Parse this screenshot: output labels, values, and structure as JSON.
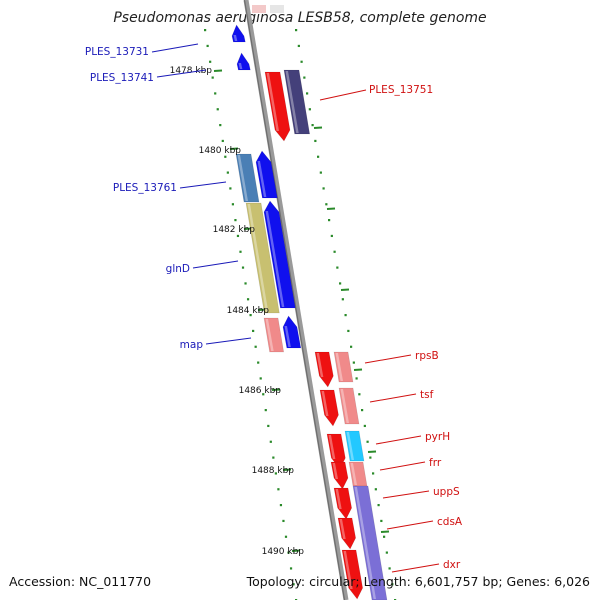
{
  "title": "Pseudomonas aeruginosa LESB58, complete genome",
  "footer": {
    "accession": "Accession: NC_011770",
    "topology": "Topology: circular; Length: 6,601,757 bp; Genes: 6,026"
  },
  "axis_labels": [
    {
      "text": "1478 kbp",
      "anchor": "end"
    },
    {
      "text": "1480 kbp",
      "anchor": "end"
    },
    {
      "text": "1482 kbp",
      "anchor": "end"
    },
    {
      "text": "1484 kbp",
      "anchor": "end"
    },
    {
      "text": "1486 kbp",
      "anchor": "end"
    },
    {
      "text": "1488 kbp",
      "anchor": "end"
    },
    {
      "text": "1490 kbp",
      "anchor": "end"
    }
  ],
  "gene_labels": [
    {
      "text": "PLES_13731",
      "color": "#1a1ab8"
    },
    {
      "text": "PLES_13741",
      "color": "#1a1ab8"
    },
    {
      "text": "PLES_13751",
      "color": "#d01010"
    },
    {
      "text": "PLES_13761",
      "color": "#1a1ab8"
    },
    {
      "text": "glnD",
      "color": "#1a1ab8"
    },
    {
      "text": "map",
      "color": "#1a1ab8"
    },
    {
      "text": "rpsB",
      "color": "#d01010"
    },
    {
      "text": "tsf",
      "color": "#d01010"
    },
    {
      "text": "pyrH",
      "color": "#d01010"
    },
    {
      "text": "frr",
      "color": "#d01010"
    },
    {
      "text": "uppS",
      "color": "#d01010"
    },
    {
      "text": "cdsA",
      "color": "#d01010"
    },
    {
      "text": "dxr",
      "color": "#d01010"
    }
  ],
  "colors": {
    "backbone": "#8a8a8a",
    "tick": "#2a8a2a",
    "forward": "#ee1111",
    "forward_light": "#f08a8a",
    "reverse": "#1010ee",
    "reverse_dark": "#44407a",
    "steel": "#4a7fb5",
    "olive": "#c8c070",
    "cyan": "#22c8ff",
    "lavender": "#7b6fd6"
  }
}
